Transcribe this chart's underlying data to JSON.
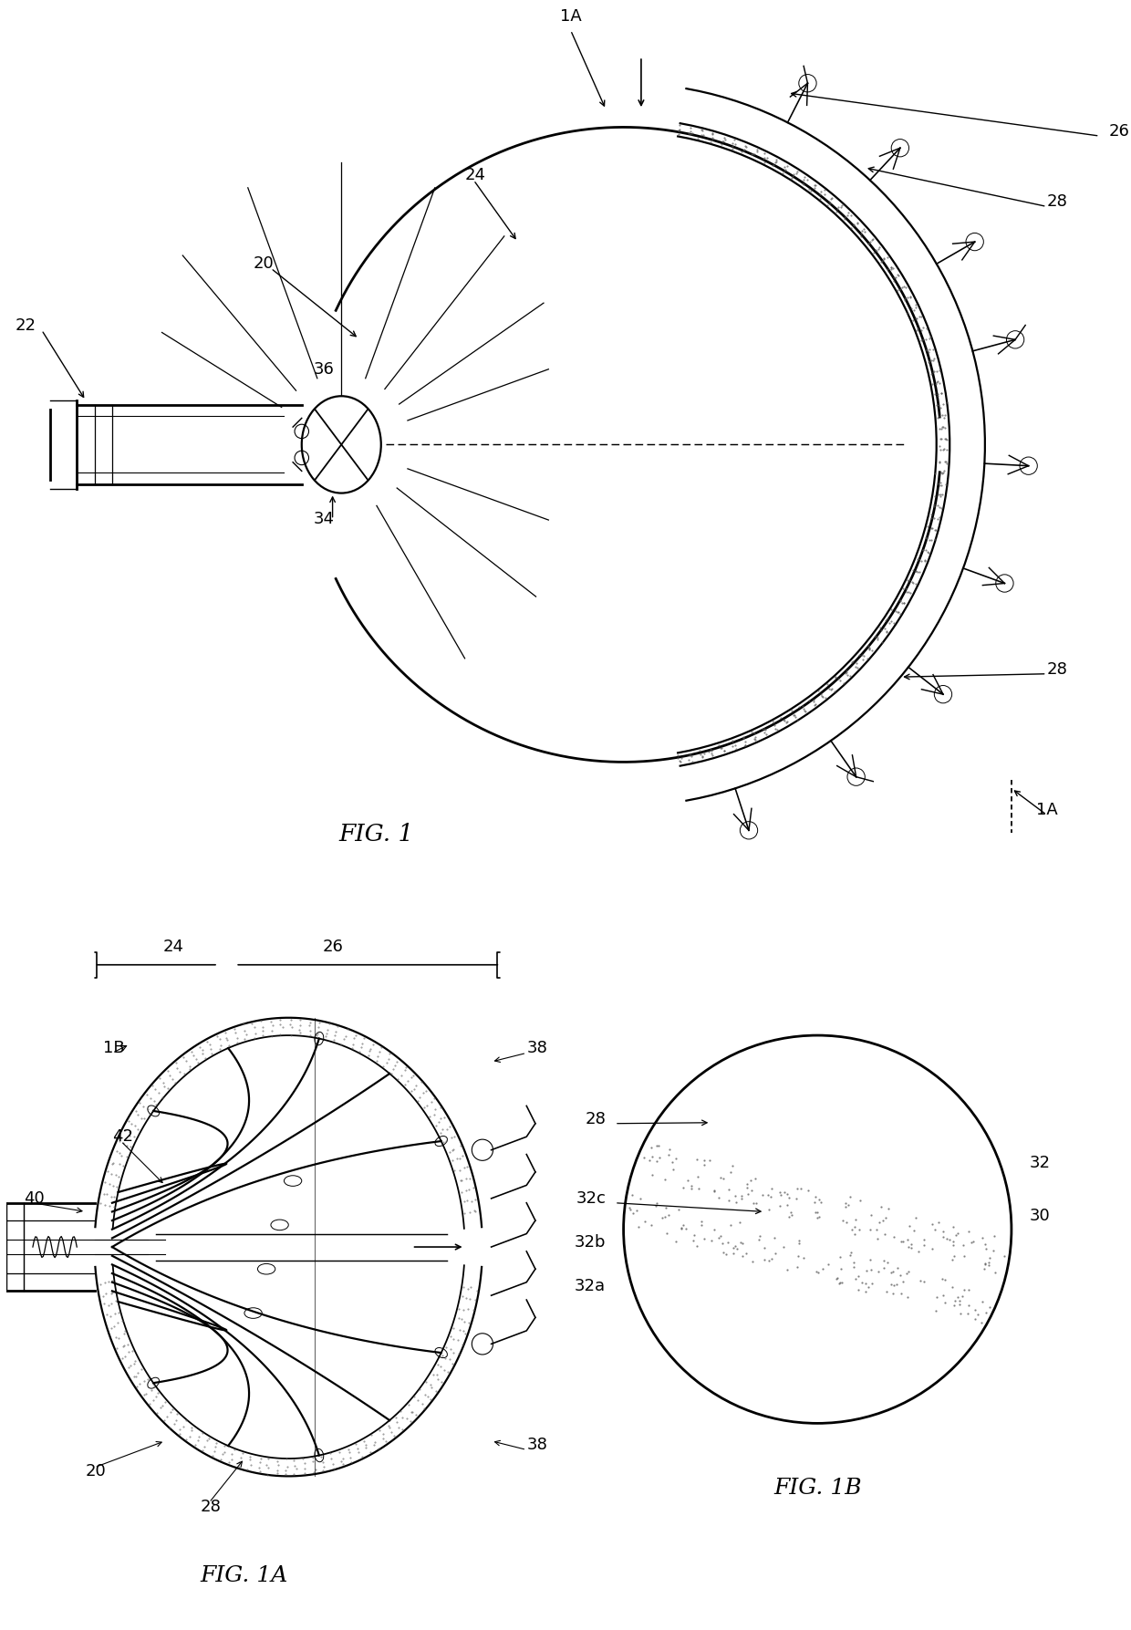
{
  "bg_color": "#ffffff",
  "line_color": "#000000",
  "fig1_label": "FIG. 1",
  "fig1a_label": "FIG. 1A",
  "fig1b_label": "FIG. 1B",
  "annotation_fontsize": 13,
  "label_fontsize": 16
}
